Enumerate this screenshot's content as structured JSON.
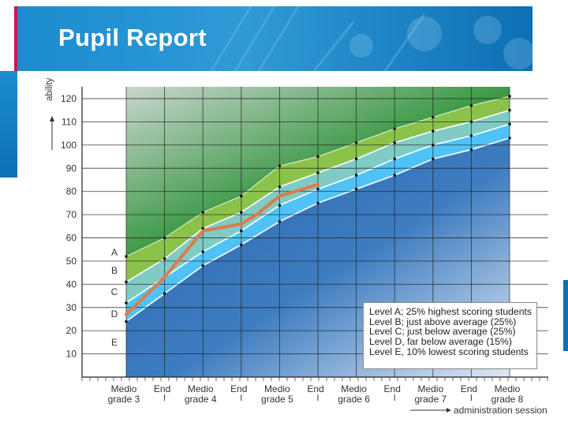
{
  "header": {
    "title": "Pupil Report"
  },
  "chart_data": {
    "type": "area",
    "ylabel": "ability",
    "xlabel": "administration session",
    "ylim": [
      0,
      125
    ],
    "yticks": [
      10,
      20,
      30,
      40,
      50,
      60,
      70,
      80,
      90,
      100,
      110,
      120
    ],
    "grid": true,
    "sessions": [
      {
        "label": "Medio",
        "sub": "grade 3"
      },
      {
        "label": "End",
        "sub": ""
      },
      {
        "label": "Medio",
        "sub": "grade 4"
      },
      {
        "label": "End",
        "sub": ""
      },
      {
        "label": "Medio",
        "sub": "grade 5"
      },
      {
        "label": "End",
        "sub": ""
      },
      {
        "label": "Medio",
        "sub": "grade 6"
      },
      {
        "label": "End",
        "sub": ""
      },
      {
        "label": "Medio",
        "sub": "grade 7"
      },
      {
        "label": "End",
        "sub": ""
      },
      {
        "label": "Medio",
        "sub": "grade 8"
      }
    ],
    "boundaries": [
      {
        "name": "A/B",
        "values": [
          52,
          60,
          71,
          78,
          91,
          95,
          101,
          107,
          112,
          117,
          121
        ]
      },
      {
        "name": "B/C",
        "values": [
          41,
          51,
          64,
          71,
          82,
          88,
          94,
          101,
          106,
          110,
          115
        ]
      },
      {
        "name": "C/D",
        "values": [
          32,
          43,
          54,
          63,
          74,
          81,
          87,
          94,
          100,
          104,
          109
        ]
      },
      {
        "name": "D/E",
        "values": [
          24,
          36,
          48,
          57,
          67,
          75,
          81,
          87,
          94,
          98,
          103
        ]
      }
    ],
    "levels": [
      {
        "letter": "A",
        "color": "#2e8b35",
        "description": "Level A; 25% highest scoring students"
      },
      {
        "letter": "B",
        "color": "#8bc34a",
        "description": "Level B; just above average (25%)"
      },
      {
        "letter": "C",
        "color": "#80cbc4",
        "description": "Level C; just below average (25%)"
      },
      {
        "letter": "D",
        "color": "#4fc3f7",
        "description": "Level D, far below average (15%)"
      },
      {
        "letter": "E",
        "color": "#1f5fa8",
        "description": "Level E, 10% lowest scoring students"
      }
    ],
    "pupil_series": {
      "name": "Pupil ability",
      "color": "#e07a4a",
      "points": [
        [
          0.0,
          27
        ],
        [
          1.0,
          43
        ],
        [
          2.0,
          63
        ],
        [
          3.0,
          66
        ],
        [
          3.4,
          70
        ],
        [
          4.0,
          78
        ],
        [
          5.0,
          83
        ]
      ]
    }
  }
}
